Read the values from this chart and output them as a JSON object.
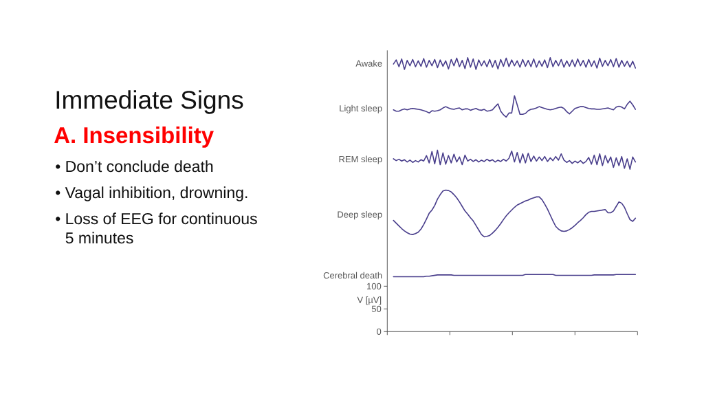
{
  "chart_data": {
    "type": "line",
    "title": "Immediate Signs",
    "subtitle": "A. Insensibility",
    "annotations": [
      "• Don’t conclude death",
      "• Vagal inhibition, drowning.",
      "• Loss of EEG for continuous 5 minutes"
    ],
    "ylabel": "V [µV]",
    "categories": [
      null,
      null,
      null,
      null,
      null,
      null,
      null,
      null,
      null,
      null,
      null,
      null,
      null,
      null,
      null,
      null,
      null,
      null,
      null,
      null,
      null,
      null,
      null,
      null,
      null,
      null,
      null,
      null,
      null,
      null,
      null,
      null,
      null,
      null,
      null,
      null,
      null,
      null,
      null,
      null,
      null,
      null,
      null,
      null,
      null,
      null,
      null,
      null,
      null,
      null,
      null,
      null,
      null,
      null,
      null,
      null,
      null,
      null,
      null,
      null,
      null,
      null,
      null,
      null,
      null,
      null,
      null,
      null,
      null,
      null,
      null,
      null,
      null,
      null,
      null,
      null,
      null,
      null,
      null,
      null,
      null,
      null,
      null,
      null,
      null,
      null,
      null,
      null,
      null
    ],
    "ylim": [
      0,
      620
    ],
    "yticks": [
      0,
      50,
      100
    ],
    "tick_labels": "y",
    "marker": "none",
    "line_style": "solid",
    "series": [
      {
        "name": "Awake",
        "color": "#483d8b",
        "values": [
          590,
          599,
          584,
          601,
          578,
          598,
          586,
          600,
          584,
          597,
          585,
          602,
          583,
          598,
          586,
          600,
          582,
          599,
          585,
          597,
          579,
          600,
          586,
          603,
          584,
          598,
          580,
          604,
          583,
          601,
          578,
          599,
          586,
          597,
          584,
          600,
          583,
          598,
          579,
          600,
          585,
          603,
          584,
          599,
          586,
          597,
          583,
          600,
          585,
          598,
          584,
          601,
          583,
          597,
          585,
          599,
          582,
          604,
          584,
          598,
          586,
          600,
          583,
          597,
          585,
          599,
          584,
          601,
          586,
          598,
          583,
          600,
          585,
          597,
          581,
          603,
          585,
          598,
          586,
          600,
          584,
          602,
          583,
          598,
          585,
          596,
          583,
          596,
          581
        ]
      },
      {
        "name": "Light sleep",
        "color": "#483d8b",
        "values": [
          489,
          486,
          486,
          489,
          491,
          489,
          491,
          492,
          491,
          490,
          489,
          487,
          485,
          482,
          487,
          486,
          487,
          489,
          493,
          496,
          493,
          491,
          490,
          492,
          493,
          489,
          491,
          491,
          488,
          490,
          492,
          489,
          488,
          490,
          486,
          487,
          489,
          496,
          502,
          486,
          478,
          473,
          482,
          482,
          520,
          500,
          479,
          479,
          481,
          487,
          490,
          491,
          493,
          496,
          494,
          492,
          490,
          489,
          490,
          492,
          494,
          495,
          492,
          485,
          480,
          486,
          492,
          494,
          496,
          496,
          494,
          492,
          491,
          491,
          490,
          490,
          491,
          492,
          493,
          491,
          489,
          495,
          497,
          495,
          491,
          501,
          508,
          500,
          490
        ]
      },
      {
        "name": "REM sleep",
        "color": "#483d8b",
        "values": [
          381,
          377,
          380,
          376,
          379,
          374,
          378,
          373,
          377,
          374,
          379,
          376,
          388,
          372,
          397,
          370,
          400,
          368,
          394,
          369,
          388,
          372,
          391,
          374,
          385,
          368,
          389,
          376,
          380,
          375,
          379,
          374,
          378,
          375,
          380,
          376,
          379,
          374,
          378,
          375,
          380,
          376,
          382,
          398,
          374,
          395,
          372,
          392,
          372,
          393,
          375,
          387,
          376,
          385,
          377,
          386,
          375,
          383,
          377,
          386,
          378,
          392,
          378,
          373,
          377,
          371,
          376,
          372,
          377,
          371,
          375,
          384,
          369,
          389,
          368,
          392,
          366,
          388,
          372,
          385,
          362,
          383,
          366,
          386,
          360,
          381,
          358,
          385,
          374
        ]
      },
      {
        "name": "Deep sleep",
        "color": "#483d8b",
        "values": [
          245,
          239,
          233,
          227,
          222,
          218,
          215,
          214,
          216,
          219,
          226,
          236,
          248,
          261,
          268,
          278,
          292,
          302,
          310,
          312,
          311,
          308,
          302,
          295,
          286,
          276,
          266,
          259,
          251,
          244,
          234,
          224,
          214,
          209,
          210,
          212,
          217,
          223,
          230,
          238,
          247,
          255,
          262,
          268,
          274,
          279,
          282,
          285,
          288,
          290,
          293,
          295,
          297,
          297,
          291,
          281,
          270,
          257,
          244,
          232,
          226,
          222,
          221,
          222,
          225,
          229,
          234,
          240,
          245,
          251,
          258,
          263,
          265,
          265,
          266,
          267,
          268,
          269,
          262,
          262,
          266,
          276,
          286,
          283,
          274,
          260,
          247,
          243,
          250
        ]
      },
      {
        "name": "Cerebral death",
        "color": "#483d8b",
        "values": [
          121,
          121,
          121,
          121,
          121,
          121,
          121,
          121,
          121,
          121,
          121,
          121,
          122,
          122,
          123,
          124,
          125,
          125,
          125,
          125,
          125,
          125,
          124,
          124,
          124,
          124,
          124,
          124,
          124,
          124,
          124,
          124,
          124,
          124,
          124,
          124,
          124,
          124,
          124,
          124,
          124,
          124,
          124,
          124,
          124,
          124,
          124,
          124,
          126,
          126,
          126,
          126,
          126,
          126,
          126,
          126,
          126,
          126,
          126,
          124,
          124,
          124,
          124,
          124,
          124,
          124,
          124,
          124,
          124,
          124,
          124,
          124,
          124,
          125,
          125,
          125,
          125,
          125,
          125,
          125,
          125,
          126,
          126,
          126,
          126,
          126,
          126,
          126,
          126
        ]
      }
    ]
  }
}
